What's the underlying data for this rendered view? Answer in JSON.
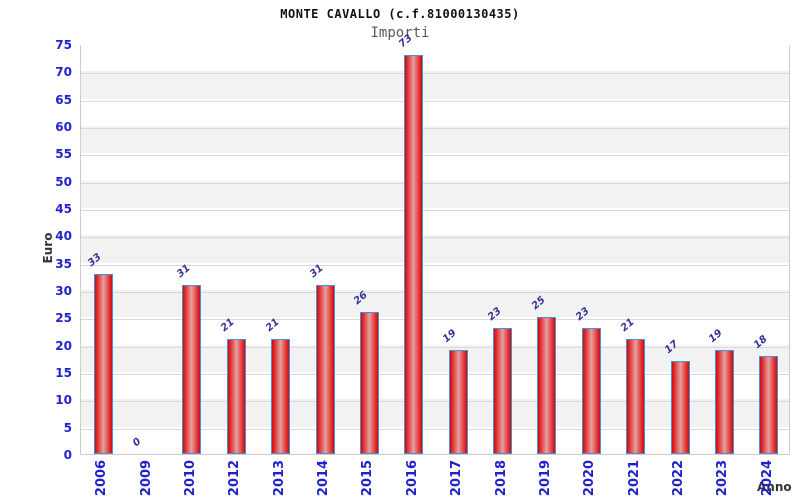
{
  "chart_data": {
    "type": "bar",
    "title": "MONTE CAVALLO (c.f.81000130435)",
    "subtitle": "Importi",
    "xlabel": "Anno",
    "ylabel": "Euro",
    "categories": [
      "2006",
      "2009",
      "2010",
      "2012",
      "2013",
      "2014",
      "2015",
      "2016",
      "2017",
      "2018",
      "2019",
      "2020",
      "2021",
      "2022",
      "2023",
      "2024"
    ],
    "values": [
      33,
      0,
      31,
      21,
      21,
      31,
      26,
      73,
      19,
      23,
      25,
      23,
      21,
      17,
      19,
      18
    ],
    "ylim": [
      0,
      75
    ],
    "ytick_step": 5,
    "grid": "horizontal",
    "legend": "none",
    "colors": {
      "bar_fill_edge": "#c40f0f",
      "bar_fill_bright": "#ea3b3b",
      "bar_fill_mid": "#dfa3a3",
      "bar_border": "#4a90d9",
      "axis_tick_label": "#2222cc",
      "value_label": "#333399",
      "band_gray": "#f2f2f2",
      "band_white": "#ffffff",
      "grid_line": "#d9d9d9",
      "title_color": "#111111",
      "subtitle_color": "#5a5a5a",
      "axis_title_color": "#333333"
    }
  }
}
